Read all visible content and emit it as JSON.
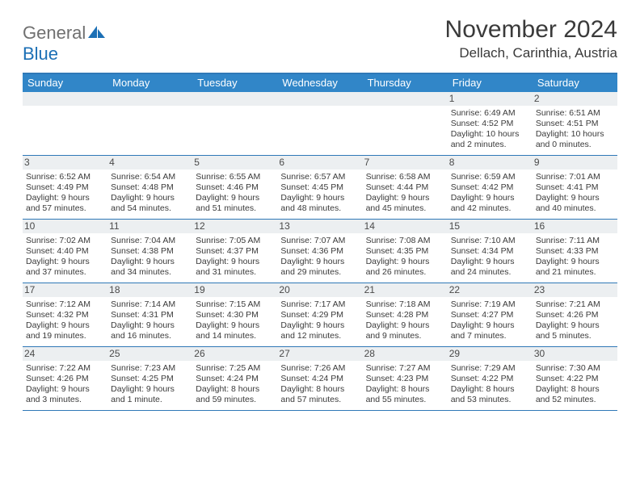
{
  "logo": {
    "word1": "General",
    "word2": "Blue"
  },
  "title": "November 2024",
  "location": "Dellach, Carinthia, Austria",
  "theme": {
    "header_bg": "#3186c8",
    "border": "#2f78b7",
    "daynum_bg": "#eceff1",
    "text": "#3a3a3a",
    "logo_gray": "#707070",
    "logo_blue": "#1b6fb5"
  },
  "weekdays": [
    "Sunday",
    "Monday",
    "Tuesday",
    "Wednesday",
    "Thursday",
    "Friday",
    "Saturday"
  ],
  "weeks": [
    [
      {
        "empty": true
      },
      {
        "empty": true
      },
      {
        "empty": true
      },
      {
        "empty": true
      },
      {
        "empty": true
      },
      {
        "n": "1",
        "sr": "Sunrise: 6:49 AM",
        "ss": "Sunset: 4:52 PM",
        "d1": "Daylight: 10 hours",
        "d2": "and 2 minutes."
      },
      {
        "n": "2",
        "sr": "Sunrise: 6:51 AM",
        "ss": "Sunset: 4:51 PM",
        "d1": "Daylight: 10 hours",
        "d2": "and 0 minutes."
      }
    ],
    [
      {
        "n": "3",
        "sr": "Sunrise: 6:52 AM",
        "ss": "Sunset: 4:49 PM",
        "d1": "Daylight: 9 hours",
        "d2": "and 57 minutes."
      },
      {
        "n": "4",
        "sr": "Sunrise: 6:54 AM",
        "ss": "Sunset: 4:48 PM",
        "d1": "Daylight: 9 hours",
        "d2": "and 54 minutes."
      },
      {
        "n": "5",
        "sr": "Sunrise: 6:55 AM",
        "ss": "Sunset: 4:46 PM",
        "d1": "Daylight: 9 hours",
        "d2": "and 51 minutes."
      },
      {
        "n": "6",
        "sr": "Sunrise: 6:57 AM",
        "ss": "Sunset: 4:45 PM",
        "d1": "Daylight: 9 hours",
        "d2": "and 48 minutes."
      },
      {
        "n": "7",
        "sr": "Sunrise: 6:58 AM",
        "ss": "Sunset: 4:44 PM",
        "d1": "Daylight: 9 hours",
        "d2": "and 45 minutes."
      },
      {
        "n": "8",
        "sr": "Sunrise: 6:59 AM",
        "ss": "Sunset: 4:42 PM",
        "d1": "Daylight: 9 hours",
        "d2": "and 42 minutes."
      },
      {
        "n": "9",
        "sr": "Sunrise: 7:01 AM",
        "ss": "Sunset: 4:41 PM",
        "d1": "Daylight: 9 hours",
        "d2": "and 40 minutes."
      }
    ],
    [
      {
        "n": "10",
        "sr": "Sunrise: 7:02 AM",
        "ss": "Sunset: 4:40 PM",
        "d1": "Daylight: 9 hours",
        "d2": "and 37 minutes."
      },
      {
        "n": "11",
        "sr": "Sunrise: 7:04 AM",
        "ss": "Sunset: 4:38 PM",
        "d1": "Daylight: 9 hours",
        "d2": "and 34 minutes."
      },
      {
        "n": "12",
        "sr": "Sunrise: 7:05 AM",
        "ss": "Sunset: 4:37 PM",
        "d1": "Daylight: 9 hours",
        "d2": "and 31 minutes."
      },
      {
        "n": "13",
        "sr": "Sunrise: 7:07 AM",
        "ss": "Sunset: 4:36 PM",
        "d1": "Daylight: 9 hours",
        "d2": "and 29 minutes."
      },
      {
        "n": "14",
        "sr": "Sunrise: 7:08 AM",
        "ss": "Sunset: 4:35 PM",
        "d1": "Daylight: 9 hours",
        "d2": "and 26 minutes."
      },
      {
        "n": "15",
        "sr": "Sunrise: 7:10 AM",
        "ss": "Sunset: 4:34 PM",
        "d1": "Daylight: 9 hours",
        "d2": "and 24 minutes."
      },
      {
        "n": "16",
        "sr": "Sunrise: 7:11 AM",
        "ss": "Sunset: 4:33 PM",
        "d1": "Daylight: 9 hours",
        "d2": "and 21 minutes."
      }
    ],
    [
      {
        "n": "17",
        "sr": "Sunrise: 7:12 AM",
        "ss": "Sunset: 4:32 PM",
        "d1": "Daylight: 9 hours",
        "d2": "and 19 minutes."
      },
      {
        "n": "18",
        "sr": "Sunrise: 7:14 AM",
        "ss": "Sunset: 4:31 PM",
        "d1": "Daylight: 9 hours",
        "d2": "and 16 minutes."
      },
      {
        "n": "19",
        "sr": "Sunrise: 7:15 AM",
        "ss": "Sunset: 4:30 PM",
        "d1": "Daylight: 9 hours",
        "d2": "and 14 minutes."
      },
      {
        "n": "20",
        "sr": "Sunrise: 7:17 AM",
        "ss": "Sunset: 4:29 PM",
        "d1": "Daylight: 9 hours",
        "d2": "and 12 minutes."
      },
      {
        "n": "21",
        "sr": "Sunrise: 7:18 AM",
        "ss": "Sunset: 4:28 PM",
        "d1": "Daylight: 9 hours",
        "d2": "and 9 minutes."
      },
      {
        "n": "22",
        "sr": "Sunrise: 7:19 AM",
        "ss": "Sunset: 4:27 PM",
        "d1": "Daylight: 9 hours",
        "d2": "and 7 minutes."
      },
      {
        "n": "23",
        "sr": "Sunrise: 7:21 AM",
        "ss": "Sunset: 4:26 PM",
        "d1": "Daylight: 9 hours",
        "d2": "and 5 minutes."
      }
    ],
    [
      {
        "n": "24",
        "sr": "Sunrise: 7:22 AM",
        "ss": "Sunset: 4:26 PM",
        "d1": "Daylight: 9 hours",
        "d2": "and 3 minutes."
      },
      {
        "n": "25",
        "sr": "Sunrise: 7:23 AM",
        "ss": "Sunset: 4:25 PM",
        "d1": "Daylight: 9 hours",
        "d2": "and 1 minute."
      },
      {
        "n": "26",
        "sr": "Sunrise: 7:25 AM",
        "ss": "Sunset: 4:24 PM",
        "d1": "Daylight: 8 hours",
        "d2": "and 59 minutes."
      },
      {
        "n": "27",
        "sr": "Sunrise: 7:26 AM",
        "ss": "Sunset: 4:24 PM",
        "d1": "Daylight: 8 hours",
        "d2": "and 57 minutes."
      },
      {
        "n": "28",
        "sr": "Sunrise: 7:27 AM",
        "ss": "Sunset: 4:23 PM",
        "d1": "Daylight: 8 hours",
        "d2": "and 55 minutes."
      },
      {
        "n": "29",
        "sr": "Sunrise: 7:29 AM",
        "ss": "Sunset: 4:22 PM",
        "d1": "Daylight: 8 hours",
        "d2": "and 53 minutes."
      },
      {
        "n": "30",
        "sr": "Sunrise: 7:30 AM",
        "ss": "Sunset: 4:22 PM",
        "d1": "Daylight: 8 hours",
        "d2": "and 52 minutes."
      }
    ]
  ]
}
